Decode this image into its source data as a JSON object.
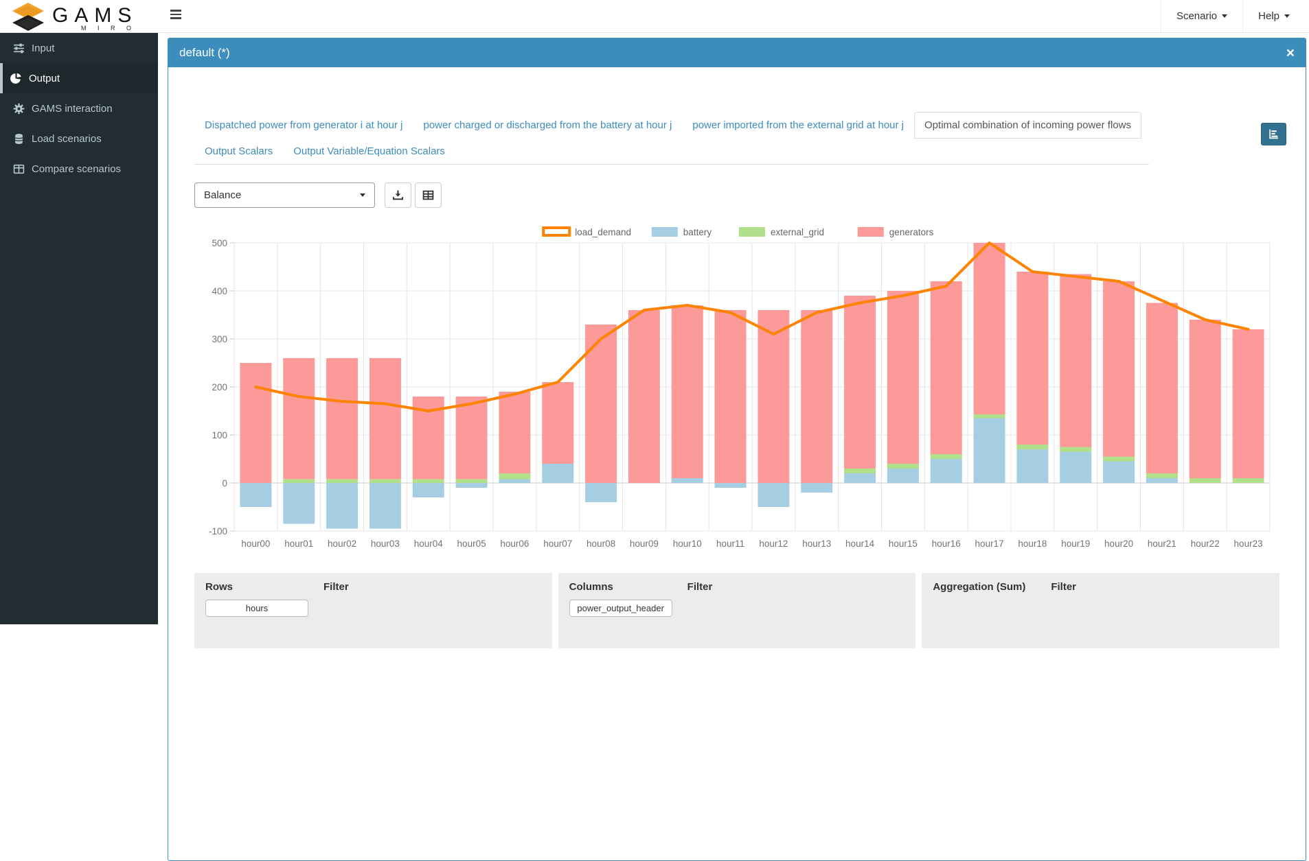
{
  "navbar": {
    "brand": "GAMS",
    "brand_sub": "M I R O",
    "scenario_label": "Scenario",
    "help_label": "Help"
  },
  "sidebar": {
    "items": [
      {
        "label": "Input",
        "icon": "sliders-icon",
        "active": false
      },
      {
        "label": "Output",
        "icon": "pie-chart-icon",
        "active": true
      },
      {
        "label": "GAMS interaction",
        "icon": "gear-icon",
        "active": false
      },
      {
        "label": "Load scenarios",
        "icon": "database-icon",
        "active": false
      },
      {
        "label": "Compare scenarios",
        "icon": "table-icon",
        "active": false
      }
    ]
  },
  "panel": {
    "title": "default (*)",
    "close_label": "×"
  },
  "tabs": [
    {
      "label": "Dispatched power from generator i at hour j",
      "active": false
    },
    {
      "label": "power charged or discharged from the battery at hour j",
      "active": false
    },
    {
      "label": "power imported from the external grid at hour j",
      "active": false
    },
    {
      "label": "Optimal combination of incoming power flows",
      "active": true
    },
    {
      "label": "Output Scalars",
      "active": false
    },
    {
      "label": "Output Variable/Equation Scalars",
      "active": false
    }
  ],
  "toolbar": {
    "view_select_value": "Balance"
  },
  "chart_data": {
    "type": "bar",
    "stacked": true,
    "title": "",
    "xlabel": "",
    "ylabel": "",
    "ylim": [
      -100,
      500
    ],
    "yticks": [
      -100,
      0,
      100,
      200,
      300,
      400,
      500
    ],
    "grid": true,
    "legend_position": "top",
    "categories": [
      "hour00",
      "hour01",
      "hour02",
      "hour03",
      "hour04",
      "hour05",
      "hour06",
      "hour07",
      "hour08",
      "hour09",
      "hour10",
      "hour11",
      "hour12",
      "hour13",
      "hour14",
      "hour15",
      "hour16",
      "hour17",
      "hour18",
      "hour19",
      "hour20",
      "hour21",
      "hour22",
      "hour23"
    ],
    "series": [
      {
        "name": "battery",
        "type": "bar",
        "color": "#a6cee3",
        "values": [
          -50,
          -85,
          -95,
          -95,
          -30,
          -10,
          8,
          40,
          -40,
          0,
          10,
          -10,
          -50,
          -20,
          20,
          30,
          50,
          135,
          70,
          65,
          45,
          10,
          0,
          0
        ]
      },
      {
        "name": "external_grid",
        "type": "bar",
        "color": "#b2df8a",
        "values": [
          0,
          8,
          8,
          8,
          8,
          8,
          12,
          0,
          0,
          0,
          0,
          0,
          0,
          0,
          10,
          10,
          10,
          8,
          10,
          10,
          10,
          10,
          10,
          10
        ]
      },
      {
        "name": "generators",
        "type": "bar",
        "color": "#fb9a99",
        "values": [
          250,
          252,
          252,
          252,
          172,
          172,
          170,
          170,
          330,
          360,
          360,
          360,
          360,
          360,
          360,
          360,
          360,
          357,
          360,
          360,
          365,
          355,
          330,
          310
        ]
      },
      {
        "name": "load_demand",
        "type": "line",
        "color": "#ff8300",
        "values": [
          200,
          180,
          170,
          165,
          150,
          165,
          185,
          210,
          300,
          360,
          370,
          355,
          310,
          355,
          375,
          390,
          410,
          500,
          440,
          430,
          420,
          380,
          340,
          320
        ]
      }
    ]
  },
  "pivot": {
    "boxes": [
      {
        "col1_header": "Rows",
        "col2_header": "Filter",
        "pills": [
          "hours"
        ]
      },
      {
        "col1_header": "Columns",
        "col2_header": "Filter",
        "pills": [
          "power_output_header"
        ]
      },
      {
        "col1_header": "Aggregation (Sum)",
        "col2_header": "Filter",
        "pills": []
      }
    ]
  }
}
